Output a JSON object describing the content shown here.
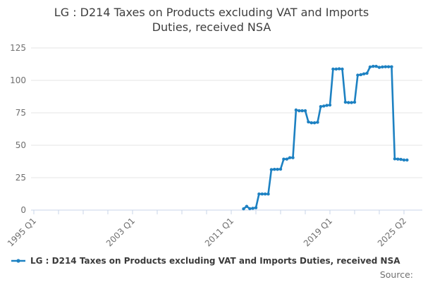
{
  "title_lines": [
    "LG : D214 Taxes on Products excluding VAT and Imports",
    "Duties, received NSA"
  ],
  "legend": {
    "label": "LG : D214 Taxes on Products excluding VAT and Imports Duties, received NSA"
  },
  "source_label": "Source:",
  "colors": {
    "line": "#1d81c2",
    "grid": "#e6e6e6",
    "axis": "#c9d5e8",
    "tick_label": "#6f6f6f",
    "title_text": "#3e3e3e"
  },
  "chart_data": {
    "type": "line",
    "title": "LG : D214 Taxes on Products excluding VAT and Imports Duties, received NSA",
    "xlabel": "",
    "ylabel": "",
    "ylim": [
      0,
      125
    ],
    "yticks": [
      0,
      25,
      50,
      75,
      100,
      125
    ],
    "grid": "horizontal",
    "legend_position": "bottom-left",
    "xtick_count": 16,
    "quarters_per_tick": 8,
    "x_axis_start": "1995 Q1",
    "x_start_offset_quarters": 68,
    "xtick_labels": [
      {
        "tick": 0,
        "label": "1995 Q1"
      },
      {
        "tick": 4,
        "label": "2003 Q1"
      },
      {
        "tick": 8,
        "label": "2011 Q1"
      },
      {
        "tick": 12,
        "label": "2019 Q1"
      },
      {
        "tick": 15,
        "label": "2025 Q2"
      }
    ],
    "x": [
      "2012 Q1",
      "2012 Q2",
      "2012 Q3",
      "2012 Q4",
      "2013 Q1",
      "2013 Q2",
      "2013 Q3",
      "2013 Q4",
      "2014 Q1",
      "2014 Q2",
      "2014 Q3",
      "2014 Q4",
      "2015 Q1",
      "2015 Q2",
      "2015 Q3",
      "2015 Q4",
      "2016 Q1",
      "2016 Q2",
      "2016 Q3",
      "2016 Q4",
      "2017 Q1",
      "2017 Q2",
      "2017 Q3",
      "2017 Q4",
      "2018 Q1",
      "2018 Q2",
      "2018 Q3",
      "2018 Q4",
      "2019 Q1",
      "2019 Q2",
      "2019 Q3",
      "2019 Q4",
      "2020 Q1",
      "2020 Q2",
      "2020 Q3",
      "2020 Q4",
      "2021 Q1",
      "2021 Q2",
      "2021 Q3",
      "2021 Q4",
      "2022 Q1",
      "2022 Q2",
      "2022 Q3",
      "2022 Q4",
      "2023 Q1",
      "2023 Q2",
      "2023 Q3",
      "2023 Q4",
      "2024 Q1",
      "2024 Q2",
      "2024 Q3",
      "2024 Q4",
      "2025 Q1",
      "2025 Q2"
    ],
    "values": [
      1.0,
      2.9,
      1.1,
      1.4,
      1.8,
      12.4,
      12.4,
      12.4,
      12.4,
      31.2,
      31.4,
      31.4,
      31.6,
      39.3,
      39.3,
      40.4,
      40.4,
      77.2,
      76.6,
      76.6,
      76.6,
      68.0,
      67.3,
      67.3,
      67.7,
      79.8,
      80.2,
      80.7,
      81.0,
      108.7,
      108.7,
      108.9,
      108.7,
      83.2,
      82.9,
      82.9,
      83.2,
      104.0,
      104.4,
      105.0,
      105.5,
      110.3,
      110.8,
      110.8,
      110.0,
      110.4,
      110.5,
      110.5,
      110.5,
      39.5,
      39.3,
      39.1,
      38.6,
      38.6
    ]
  }
}
